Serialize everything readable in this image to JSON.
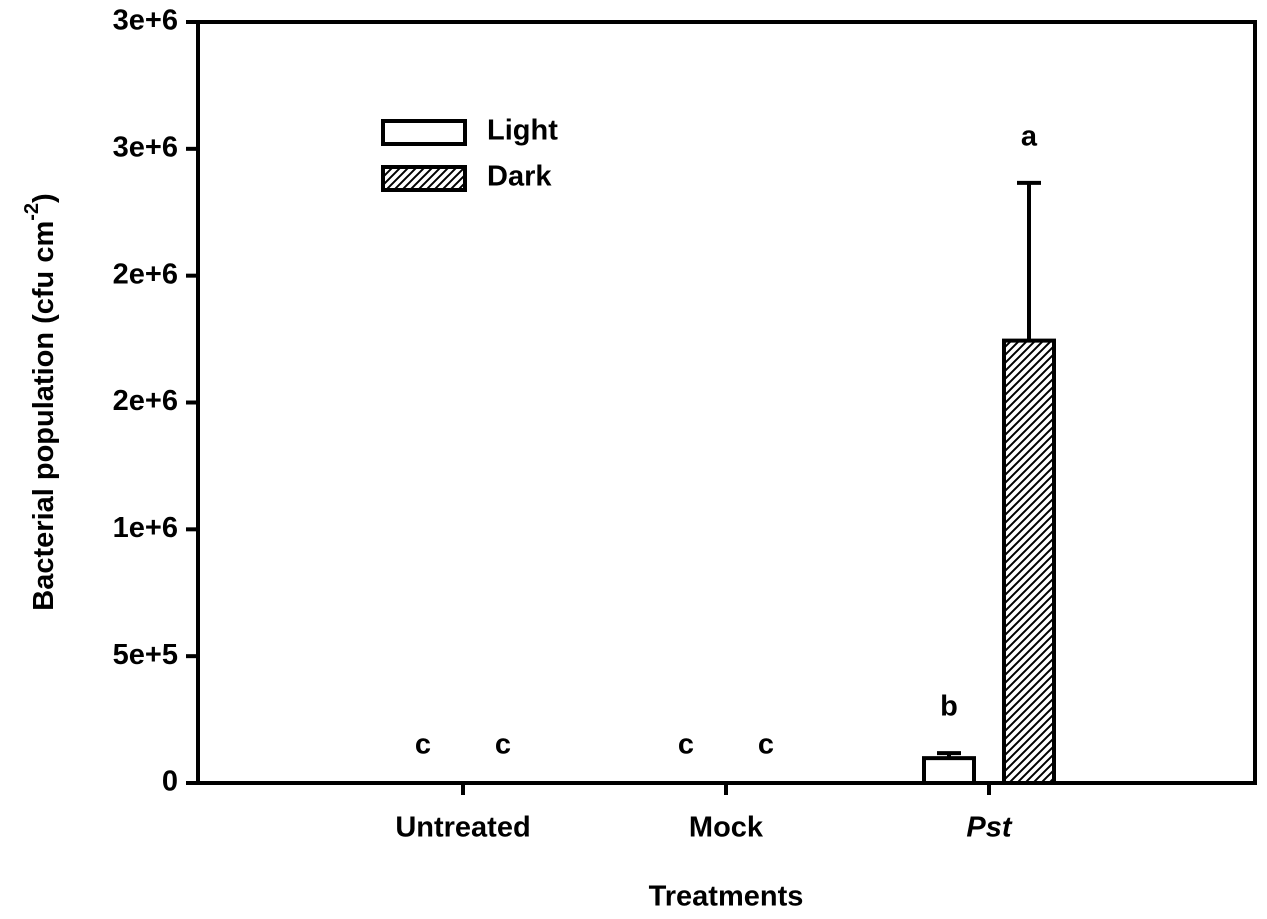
{
  "chart_data": {
    "type": "bar",
    "ylabel": {
      "text": "Bacterial population (cfu cm",
      "sup": "-2",
      "close": ")"
    },
    "xlabel": "Treatments",
    "categories": [
      "Untreated",
      "Mock",
      "Pst"
    ],
    "category_italic": [
      false,
      false,
      true
    ],
    "series": [
      {
        "name": "Light",
        "color": "#ffffff",
        "hatch": false,
        "values": [
          0,
          0,
          98000
        ],
        "errors": [
          0,
          0,
          20000
        ],
        "letters": [
          "c",
          "c",
          "b"
        ]
      },
      {
        "name": "Dark",
        "color": "#000000",
        "hatch": true,
        "values": [
          0,
          0,
          1744000
        ],
        "errors": [
          0,
          0,
          622000
        ],
        "letters": [
          "c",
          "c",
          "a"
        ]
      }
    ],
    "ylim": [
      0,
      3000000
    ],
    "yticks": [
      0,
      {
        "value": 500000,
        "label": "5e+5"
      },
      {
        "value": 1000000,
        "label": "1e+6"
      },
      {
        "value": 1500000,
        "label": "2e+6"
      },
      {
        "value": 2000000,
        "label": "2e+6"
      },
      {
        "value": 2500000,
        "label": "3e+6"
      },
      {
        "value": 3000000,
        "label": "3e+6"
      }
    ],
    "legend": "upper left"
  }
}
